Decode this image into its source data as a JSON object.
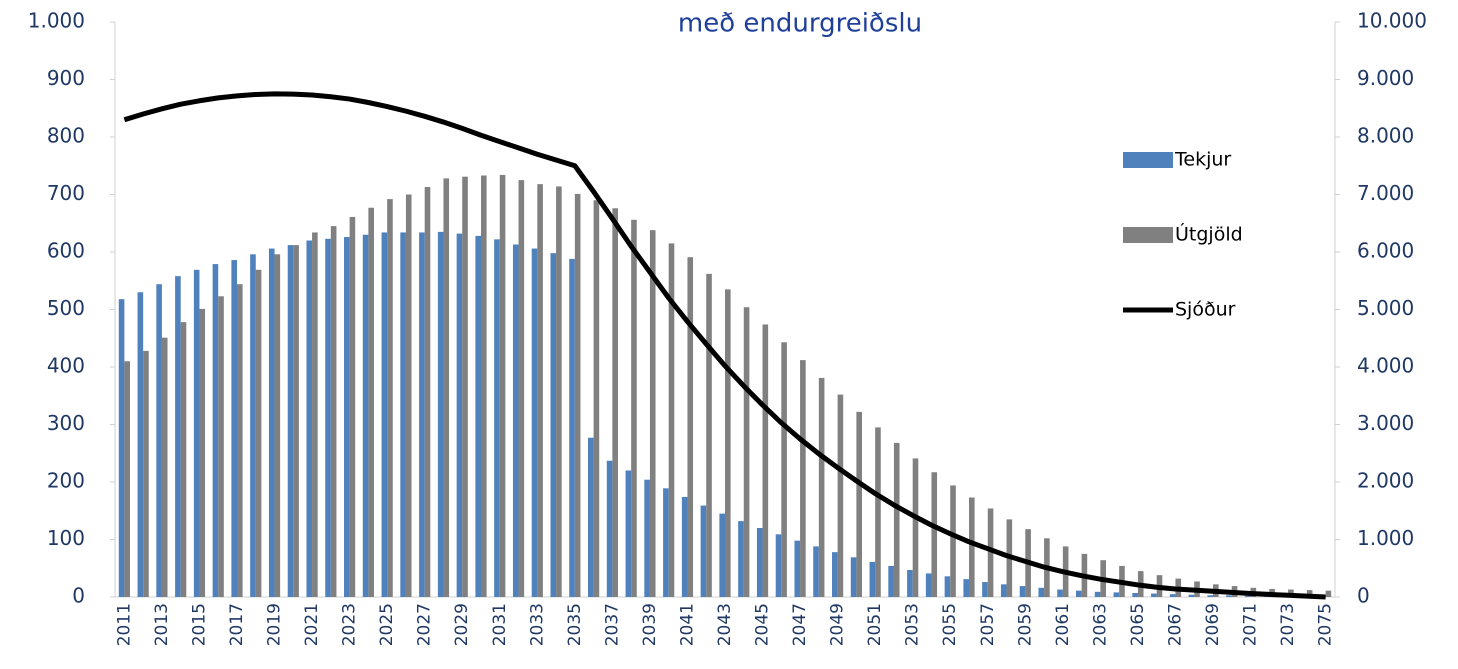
{
  "chart_data": {
    "type": "bar",
    "title": "með endurgreiðslu",
    "categories": [
      "2011",
      null,
      "2013",
      null,
      "2015",
      null,
      "2017",
      null,
      "2019",
      null,
      "2021",
      null,
      "2023",
      null,
      "2025",
      null,
      "2027",
      null,
      "2029",
      null,
      "2031",
      null,
      "2033",
      null,
      "2035",
      null,
      "2037",
      null,
      "2039",
      null,
      "2041",
      null,
      "2043",
      null,
      "2045",
      null,
      "2047",
      null,
      "2049",
      null,
      "2051",
      null,
      "2053",
      null,
      "2055",
      null,
      "2057",
      null,
      "2059",
      null,
      "2061",
      null,
      "2063",
      null,
      "2065",
      null,
      "2067",
      null,
      "2069",
      null,
      "2071",
      null,
      "2073",
      null,
      "2075"
    ],
    "series": [
      {
        "name": "Tekjur",
        "color": "#4f81bd",
        "type": "bar",
        "values": [
          518,
          530,
          544,
          558,
          569,
          579,
          586,
          596,
          606,
          612,
          620,
          623,
          626,
          630,
          634,
          634,
          634,
          635,
          632,
          628,
          622,
          613,
          606,
          598,
          588,
          277,
          237,
          220,
          204,
          189,
          174,
          159,
          145,
          132,
          120,
          109,
          98,
          88,
          78,
          69,
          61,
          54,
          47,
          41,
          36,
          31,
          26,
          22,
          19,
          16,
          13,
          11,
          9,
          8,
          7,
          6,
          5,
          4,
          3,
          3,
          2,
          2,
          2,
          1,
          1
        ]
      },
      {
        "name": "Útgjöld",
        "color": "#808080",
        "type": "bar",
        "values": [
          410,
          428,
          451,
          478,
          501,
          523,
          544,
          569,
          596,
          612,
          634,
          645,
          661,
          677,
          692,
          700,
          713,
          728,
          731,
          733,
          734,
          725,
          718,
          714,
          701,
          690,
          676,
          656,
          638,
          615,
          591,
          562,
          535,
          504,
          474,
          443,
          412,
          381,
          352,
          322,
          295,
          268,
          241,
          217,
          194,
          173,
          154,
          135,
          118,
          102,
          88,
          75,
          64,
          54,
          45,
          38,
          32,
          27,
          22,
          19,
          16,
          14,
          13,
          12,
          11
        ]
      },
      {
        "name": "Sjóður",
        "color": "#000000",
        "type": "line",
        "axis": "y2",
        "values": [
          8300,
          8400,
          8490,
          8570,
          8630,
          8680,
          8715,
          8740,
          8750,
          8745,
          8730,
          8700,
          8660,
          8600,
          8530,
          8450,
          8360,
          8260,
          8150,
          8030,
          7920,
          7810,
          7700,
          7600,
          7500,
          7050,
          6580,
          6100,
          5650,
          5200,
          4790,
          4400,
          4020,
          3670,
          3340,
          3030,
          2750,
          2490,
          2250,
          2020,
          1800,
          1600,
          1420,
          1250,
          1100,
          960,
          840,
          720,
          620,
          520,
          440,
          370,
          310,
          260,
          210,
          170,
          140,
          120,
          100,
          80,
          60,
          45,
          30,
          15,
          0
        ]
      }
    ],
    "ylim": [
      0,
      1000
    ],
    "yticks": [
      0,
      100,
      200,
      300,
      400,
      500,
      600,
      700,
      800,
      900,
      {
        "value": 1000,
        "label": "1.000"
      }
    ],
    "y2lim": [
      0,
      10000
    ],
    "y2ticks": [
      0,
      {
        "value": 1000,
        "label": "1.000"
      },
      {
        "value": 2000,
        "label": "2.000"
      },
      {
        "value": 3000,
        "label": "3.000"
      },
      {
        "value": 4000,
        "label": "4.000"
      },
      {
        "value": 5000,
        "label": "5.000"
      },
      {
        "value": 6000,
        "label": "6.000"
      },
      {
        "value": 7000,
        "label": "7.000"
      },
      {
        "value": 8000,
        "label": "8.000"
      },
      {
        "value": 9000,
        "label": "9.000"
      },
      {
        "value": 10000,
        "label": "10.000"
      }
    ],
    "grid": false,
    "legend": "right"
  }
}
